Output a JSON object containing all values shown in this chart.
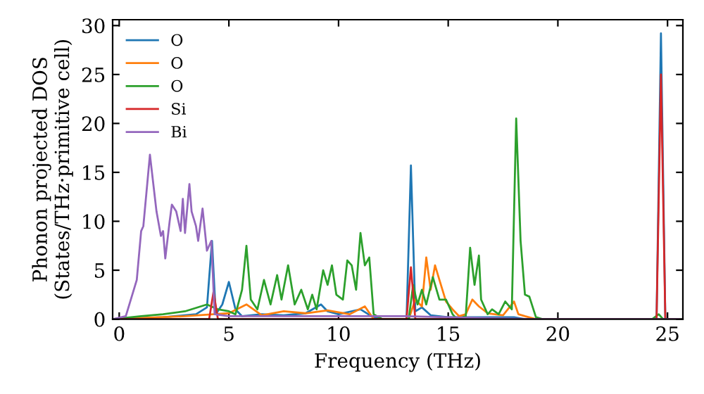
{
  "chart_data": {
    "type": "line",
    "xlabel": "Frequency (THz)",
    "ylabel": "Phonon projected DOS\n(States/THz·primitive cell)",
    "xlim": [
      -0.3,
      25.7
    ],
    "ylim": [
      0,
      30.6
    ],
    "xticks": [
      0,
      5,
      10,
      15,
      20,
      25
    ],
    "yticks": [
      0,
      5,
      10,
      15,
      20,
      25,
      30
    ],
    "legend": "top left",
    "grid": false,
    "series": [
      {
        "name": "O",
        "color": "#1f77b4",
        "x": [
          -0.3,
          2,
          3.5,
          4.0,
          4.23,
          4.4,
          4.7,
          5.0,
          5.3,
          5.6,
          6.5,
          7.5,
          8.5,
          9.2,
          9.5,
          10,
          11,
          11.5,
          12,
          13.1,
          13.3,
          13.5,
          13.8,
          14.2,
          15,
          16,
          18,
          18.5,
          24.5,
          24.7,
          24.9,
          25.5
        ],
        "values": [
          0,
          0.2,
          0.5,
          1.2,
          8,
          0.5,
          1.5,
          3.8,
          1,
          0.3,
          0.5,
          0.4,
          0.6,
          1.5,
          0.8,
          0.5,
          1,
          0.3,
          0,
          0,
          15.7,
          0.8,
          1.2,
          0.4,
          0.2,
          0.2,
          0.2,
          0,
          0,
          29.2,
          0,
          0
        ]
      },
      {
        "name": "O",
        "color": "#ff7f0e",
        "x": [
          -0.3,
          3,
          4.3,
          5,
          5.8,
          6.5,
          7.5,
          8.5,
          9.5,
          10.5,
          11.2,
          11.6,
          13.2,
          13.5,
          13.8,
          14.0,
          14.2,
          14.4,
          14.6,
          14.9,
          15.2,
          15.5,
          15.8,
          16.1,
          16.4,
          16.8,
          17.5,
          18.0,
          18.2,
          18.5,
          19,
          24.5,
          25.5
        ],
        "values": [
          0,
          0.3,
          0.5,
          0.6,
          1.5,
          0.4,
          0.8,
          0.6,
          0.9,
          0.5,
          1.3,
          0,
          0,
          2,
          1.3,
          6.3,
          3,
          5.5,
          4,
          1.8,
          1,
          0.3,
          0.5,
          2,
          1.3,
          0.6,
          0.4,
          1.8,
          0.5,
          0.3,
          0,
          0,
          0
        ]
      },
      {
        "name": "O",
        "color": "#2ca02c",
        "x": [
          -0.3,
          1,
          2,
          3,
          4,
          4.5,
          5.0,
          5.3,
          5.6,
          5.8,
          6.0,
          6.3,
          6.6,
          6.9,
          7.2,
          7.4,
          7.7,
          8.0,
          8.3,
          8.6,
          8.8,
          9.0,
          9.3,
          9.5,
          9.7,
          9.9,
          10.2,
          10.4,
          10.6,
          10.8,
          11.0,
          11.2,
          11.4,
          11.6,
          12,
          13.2,
          13.4,
          13.6,
          13.8,
          14.0,
          14.3,
          14.6,
          14.9,
          15.2,
          15.4,
          15.8,
          16.0,
          16.2,
          16.4,
          16.5,
          16.8,
          17.0,
          17.3,
          17.6,
          17.9,
          18.1,
          18.3,
          18.5,
          18.7,
          19.0,
          19.3,
          24.3,
          24.6,
          24.8,
          25.5
        ],
        "values": [
          0,
          0.3,
          0.5,
          0.8,
          1.5,
          1,
          0.8,
          0.5,
          3,
          7.5,
          2,
          1,
          4,
          1.5,
          4.5,
          2,
          5.5,
          1.5,
          3,
          1,
          2.5,
          1,
          5,
          3.5,
          5.5,
          2.5,
          2,
          6,
          5.5,
          3,
          8.8,
          5.5,
          6.3,
          0.5,
          0,
          0,
          3.5,
          1.5,
          3,
          1.5,
          4.3,
          2,
          2,
          0.5,
          0,
          0.3,
          7.3,
          3.5,
          6.5,
          2,
          0.5,
          1,
          0.5,
          1.8,
          1,
          20.5,
          8,
          2.5,
          2.3,
          0.2,
          0,
          0,
          0.5,
          0,
          0
        ]
      },
      {
        "name": "Si",
        "color": "#d62728",
        "x": [
          -0.3,
          4.1,
          4.3,
          4.5,
          13.1,
          13.3,
          13.5,
          24.5,
          24.7,
          24.9,
          25.5
        ],
        "values": [
          0,
          0,
          2.8,
          0,
          0,
          5.3,
          0,
          0,
          25,
          0,
          0
        ]
      },
      {
        "name": "Bi",
        "color": "#9467bd",
        "x": [
          -0.3,
          0.3,
          0.8,
          1.0,
          1.1,
          1.4,
          1.7,
          1.9,
          2.0,
          2.1,
          2.3,
          2.4,
          2.6,
          2.8,
          2.9,
          3.0,
          3.2,
          3.3,
          3.5,
          3.6,
          3.8,
          4.0,
          4.2,
          4.35,
          5,
          7,
          10,
          13,
          15,
          19,
          25.5
        ],
        "values": [
          0,
          0.3,
          4,
          9,
          9.5,
          16.8,
          11,
          8.5,
          9,
          6.2,
          10,
          11.7,
          11,
          9,
          12.3,
          8.8,
          13.8,
          11,
          9.5,
          8,
          11.3,
          7,
          8,
          0.5,
          0.3,
          0.3,
          0.3,
          0.3,
          0.2,
          0,
          0
        ]
      }
    ]
  }
}
